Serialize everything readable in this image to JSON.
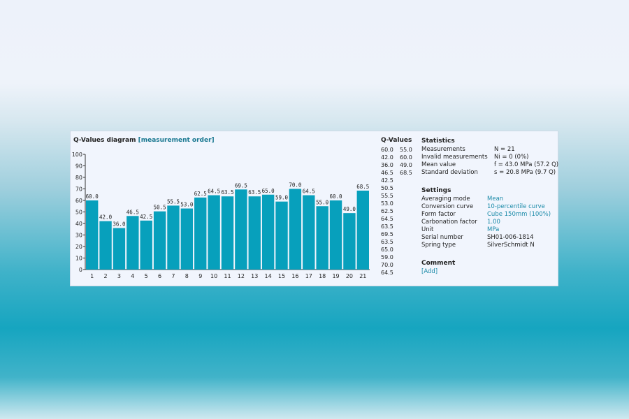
{
  "header": {
    "title": "Q-Values diagram",
    "title_link": "[measurement order]"
  },
  "chart_data": {
    "type": "bar",
    "categories": [
      "1",
      "2",
      "3",
      "4",
      "5",
      "6",
      "7",
      "8",
      "9",
      "10",
      "11",
      "12",
      "13",
      "14",
      "15",
      "16",
      "17",
      "18",
      "19",
      "20",
      "21"
    ],
    "values": [
      60.0,
      42.0,
      36.0,
      46.5,
      42.5,
      50.5,
      55.5,
      53.0,
      62.5,
      64.5,
      63.5,
      69.5,
      63.5,
      65.0,
      59.0,
      70.0,
      64.5,
      55.0,
      60.0,
      49.0,
      68.5
    ],
    "labels": [
      "60.0",
      "42.0",
      "36.0",
      "46.5",
      "42.5",
      "50.5",
      "55.5",
      "53.0",
      "62.5",
      "64.5",
      "63.5",
      "69.5",
      "63.5",
      "65.0",
      "59.0",
      "70.0",
      "64.5",
      "55.0",
      "60.0",
      "49.0",
      "68.5"
    ],
    "yticks": [
      "0",
      "10",
      "20",
      "30",
      "40",
      "50",
      "60",
      "70",
      "80",
      "90",
      "100"
    ],
    "ylim": [
      0,
      100
    ],
    "bar_color": "#07a0bc"
  },
  "qvalues": {
    "title": "Q-Values",
    "rows": [
      [
        "60.0",
        "55.0"
      ],
      [
        "42.0",
        "60.0"
      ],
      [
        "36.0",
        "49.0"
      ],
      [
        "46.5",
        "68.5"
      ],
      [
        "42.5",
        ""
      ],
      [
        "50.5",
        ""
      ],
      [
        "55.5",
        ""
      ],
      [
        "53.0",
        ""
      ],
      [
        "62.5",
        ""
      ],
      [
        "64.5",
        ""
      ],
      [
        "63.5",
        ""
      ],
      [
        "69.5",
        ""
      ],
      [
        "63.5",
        ""
      ],
      [
        "65.0",
        ""
      ],
      [
        "59.0",
        ""
      ],
      [
        "70.0",
        ""
      ],
      [
        "64.5",
        ""
      ]
    ]
  },
  "statistics": {
    "title": "Statistics",
    "rows": [
      {
        "label": "Measurements",
        "value": "N = 21"
      },
      {
        "label": "Invalid measurements",
        "value": "Ni = 0 (0%)"
      },
      {
        "label": "Mean value",
        "value": "f   = 43.0 MPa (57.2 Q)"
      },
      {
        "label": "Standard deviation",
        "value": "s   = 20.8 MPa (9.7 Q)"
      }
    ]
  },
  "settings": {
    "title": "Settings",
    "averaging_mode_label": "Averaging mode",
    "averaging_mode": "Mean",
    "conversion_curve_label": "Conversion curve",
    "conversion_curve": "10-percentile curve",
    "form_factor_label": "Form factor",
    "form_factor": "Cube 150mm (100%)",
    "carbonation_factor_label": "Carbonation factor",
    "carbonation_factor": "1.00",
    "unit_label": "Unit",
    "unit": "MPa",
    "serial_number_label": "Serial number",
    "serial_number": "SH01-006-1814",
    "spring_type_label": "Spring type",
    "spring_type": "SilverSchmidt N"
  },
  "comment": {
    "title": "Comment",
    "add_label": "[Add]"
  }
}
